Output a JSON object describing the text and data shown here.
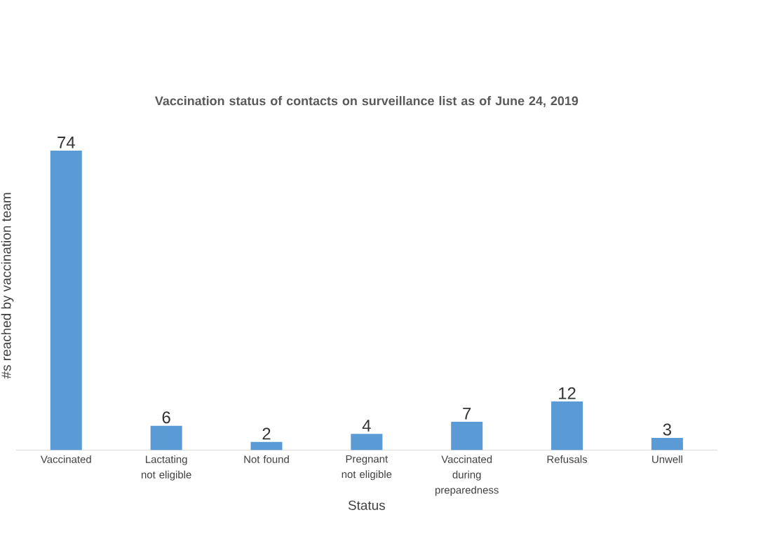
{
  "chart_data": {
    "type": "bar",
    "title": "Vaccination status of contacts on surveillance list as of June 24, 2019",
    "xlabel": "Status",
    "ylabel": "#s reached by vaccination team",
    "categories": [
      "Vaccinated",
      "Lactating not eligible",
      "Not found",
      "Pregnant not eligible",
      "Vaccinated during preparedness",
      "Refusals",
      "Unwell"
    ],
    "values": [
      74,
      6,
      2,
      4,
      7,
      12,
      3
    ],
    "color": "#5b9bd5",
    "data_labels": true
  }
}
